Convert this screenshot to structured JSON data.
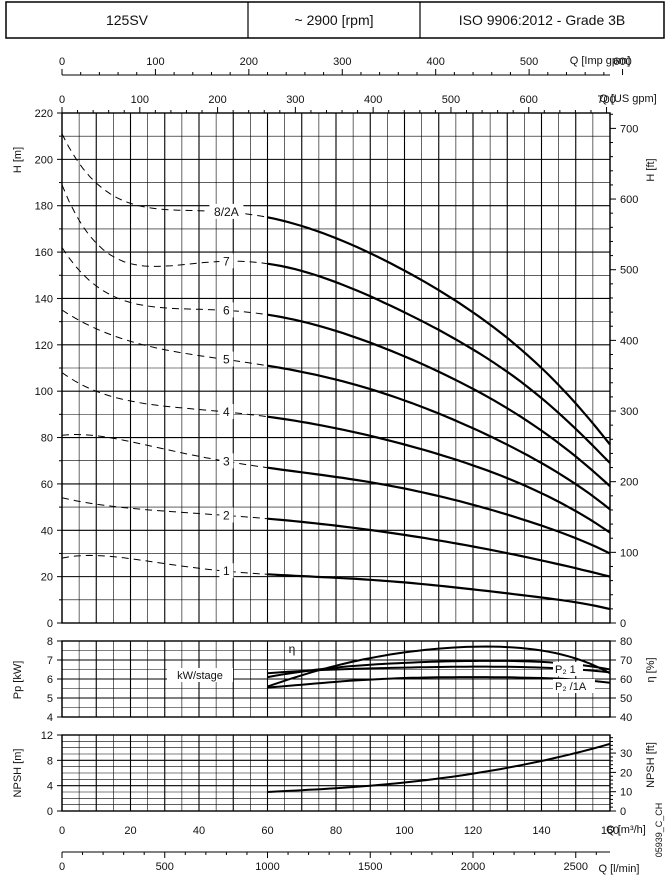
{
  "header": {
    "model": "125SV",
    "speed": "~ 2900 [rpm]",
    "standard": "ISO 9906:2012 - Grade 3B"
  },
  "axes": {
    "imp_gpm": {
      "label": "Q [Imp gpm]",
      "ticks": [
        "0",
        "100",
        "200",
        "300",
        "400",
        "500",
        "600"
      ]
    },
    "us_gpm": {
      "label": "Q [US gpm]",
      "ticks": [
        "0",
        "100",
        "200",
        "300",
        "400",
        "500",
        "600",
        "700"
      ]
    },
    "m3h": {
      "label": "Q [m³/h]",
      "ticks": [
        "0",
        "20",
        "40",
        "60",
        "80",
        "100",
        "120",
        "140",
        "160"
      ]
    },
    "lmin": {
      "label": "Q [l/min]",
      "ticks": [
        "0",
        "500",
        "1000",
        "1500",
        "2000",
        "2500"
      ]
    },
    "head_m": {
      "label": "H [m]",
      "ticks": [
        "0",
        "20",
        "40",
        "60",
        "80",
        "100",
        "120",
        "140",
        "160",
        "180",
        "200",
        "220"
      ]
    },
    "head_ft": {
      "label": "H [ft]",
      "ticks": [
        "0",
        "100",
        "200",
        "300",
        "400",
        "500",
        "600",
        "700"
      ]
    },
    "power_kw": {
      "label": "Pp [kW]",
      "ticks": [
        "4",
        "5",
        "6",
        "7",
        "8"
      ]
    },
    "eff_pct": {
      "label": "η [%]",
      "ticks": [
        "40",
        "50",
        "60",
        "70",
        "80"
      ]
    },
    "npsh_m": {
      "label": "NPSH [m]",
      "ticks": [
        "0",
        "4",
        "8",
        "12"
      ]
    },
    "npsh_ft": {
      "label": "NPSH [ft]",
      "ticks": [
        "0",
        "10",
        "20",
        "30"
      ]
    }
  },
  "labels": {
    "eta": "η",
    "kw_stage": "kW/stage",
    "p2_1": "P₂ 1",
    "p2_1a": "P₂ /1A",
    "drawing_code": "05939_C_CH"
  },
  "chart_data": [
    {
      "type": "line",
      "panel": "head",
      "x_unit": "m³/h",
      "xlim": [
        0,
        160
      ],
      "ylim": [
        0,
        220
      ],
      "grid": true,
      "operating_range": [
        60,
        160
      ],
      "series": [
        {
          "name": "1",
          "x": [
            0,
            60,
            80,
            100,
            120,
            140,
            160
          ],
          "y": [
            28,
            21,
            19.5,
            17.5,
            14.5,
            11,
            6
          ]
        },
        {
          "name": "2",
          "x": [
            0,
            60,
            80,
            100,
            120,
            140,
            160
          ],
          "y": [
            54,
            45,
            42,
            38,
            33,
            27,
            20
          ]
        },
        {
          "name": "3",
          "x": [
            0,
            60,
            80,
            100,
            120,
            140,
            160
          ],
          "y": [
            81,
            67,
            63,
            58,
            51,
            42,
            30
          ]
        },
        {
          "name": "4",
          "x": [
            0,
            60,
            80,
            100,
            120,
            140,
            160
          ],
          "y": [
            108,
            89,
            84,
            77,
            68,
            56,
            39
          ]
        },
        {
          "name": "5",
          "x": [
            0,
            60,
            80,
            100,
            120,
            140,
            160
          ],
          "y": [
            135,
            111,
            105,
            96,
            84,
            69,
            49
          ]
        },
        {
          "name": "6",
          "x": [
            0,
            60,
            80,
            100,
            120,
            140,
            160
          ],
          "y": [
            162,
            133,
            126,
            115,
            101,
            83,
            59
          ]
        },
        {
          "name": "7",
          "x": [
            0,
            60,
            80,
            100,
            120,
            140,
            160
          ],
          "y": [
            189,
            155,
            147,
            134,
            118,
            97,
            69
          ]
        },
        {
          "name": "8/2A",
          "x": [
            0,
            60,
            80,
            100,
            120,
            140,
            160
          ],
          "y": [
            211,
            175,
            166,
            152,
            134,
            110,
            77
          ]
        }
      ]
    },
    {
      "type": "line",
      "panel": "power-efficiency",
      "x_unit": "m³/h",
      "xlim": [
        0,
        160
      ],
      "ylim_power": [
        4,
        8
      ],
      "ylim_eff": [
        40,
        80
      ],
      "grid": true,
      "series": [
        {
          "name": "η",
          "axis": "eff",
          "x": [
            60,
            80,
            100,
            120,
            140,
            160
          ],
          "y": [
            56,
            67,
            74,
            77,
            75,
            63
          ]
        },
        {
          "name": "P₂ 1",
          "axis": "power",
          "x": [
            60,
            80,
            100,
            120,
            140,
            160
          ],
          "y": [
            6.1,
            6.6,
            6.85,
            6.95,
            6.9,
            6.5
          ]
        },
        {
          "name": "P₂ /1A",
          "axis": "power",
          "x": [
            60,
            80,
            100,
            120,
            140,
            160
          ],
          "y": [
            5.55,
            5.85,
            6.05,
            6.1,
            6.05,
            5.8
          ]
        },
        {
          "name": "kW/stage",
          "axis": "power",
          "x": [
            60,
            80,
            100,
            120,
            140,
            160
          ],
          "y": [
            6.3,
            6.5,
            6.6,
            6.65,
            6.6,
            6.35
          ]
        }
      ]
    },
    {
      "type": "line",
      "panel": "npsh",
      "x_unit": "m³/h",
      "xlim": [
        0,
        160
      ],
      "ylim": [
        0,
        12
      ],
      "grid": true,
      "series": [
        {
          "name": "NPSH",
          "x": [
            60,
            80,
            100,
            120,
            140,
            160
          ],
          "y": [
            3,
            3.6,
            4.5,
            5.9,
            7.9,
            10.6
          ]
        }
      ]
    }
  ]
}
